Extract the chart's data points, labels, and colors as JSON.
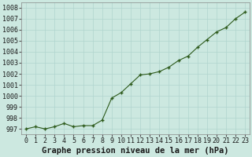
{
  "x": [
    0,
    1,
    2,
    3,
    4,
    5,
    6,
    7,
    8,
    9,
    10,
    11,
    12,
    13,
    14,
    15,
    16,
    17,
    18,
    19,
    20,
    21,
    22,
    23
  ],
  "y": [
    997.0,
    997.2,
    997.0,
    997.2,
    997.5,
    997.2,
    997.3,
    997.3,
    997.8,
    999.8,
    1000.3,
    1001.1,
    1001.9,
    1002.0,
    1002.2,
    1002.6,
    1003.2,
    1003.6,
    1004.4,
    1005.1,
    1005.8,
    1006.2,
    1007.0,
    1007.6
  ],
  "line_color": "#2d5a1b",
  "marker_color": "#2d5a1b",
  "bg_color": "#cce8e0",
  "grid_color": "#b0d4ce",
  "title": "Graphe pression niveau de la mer (hPa)",
  "ylim": [
    996.5,
    1008.5
  ],
  "yticks": [
    997,
    998,
    999,
    1000,
    1001,
    1002,
    1003,
    1004,
    1005,
    1006,
    1007,
    1008
  ],
  "xlim": [
    -0.5,
    23.5
  ],
  "xticks": [
    0,
    1,
    2,
    3,
    4,
    5,
    6,
    7,
    8,
    9,
    10,
    11,
    12,
    13,
    14,
    15,
    16,
    17,
    18,
    19,
    20,
    21,
    22,
    23
  ],
  "title_fontsize": 7.5,
  "tick_fontsize": 6.0
}
